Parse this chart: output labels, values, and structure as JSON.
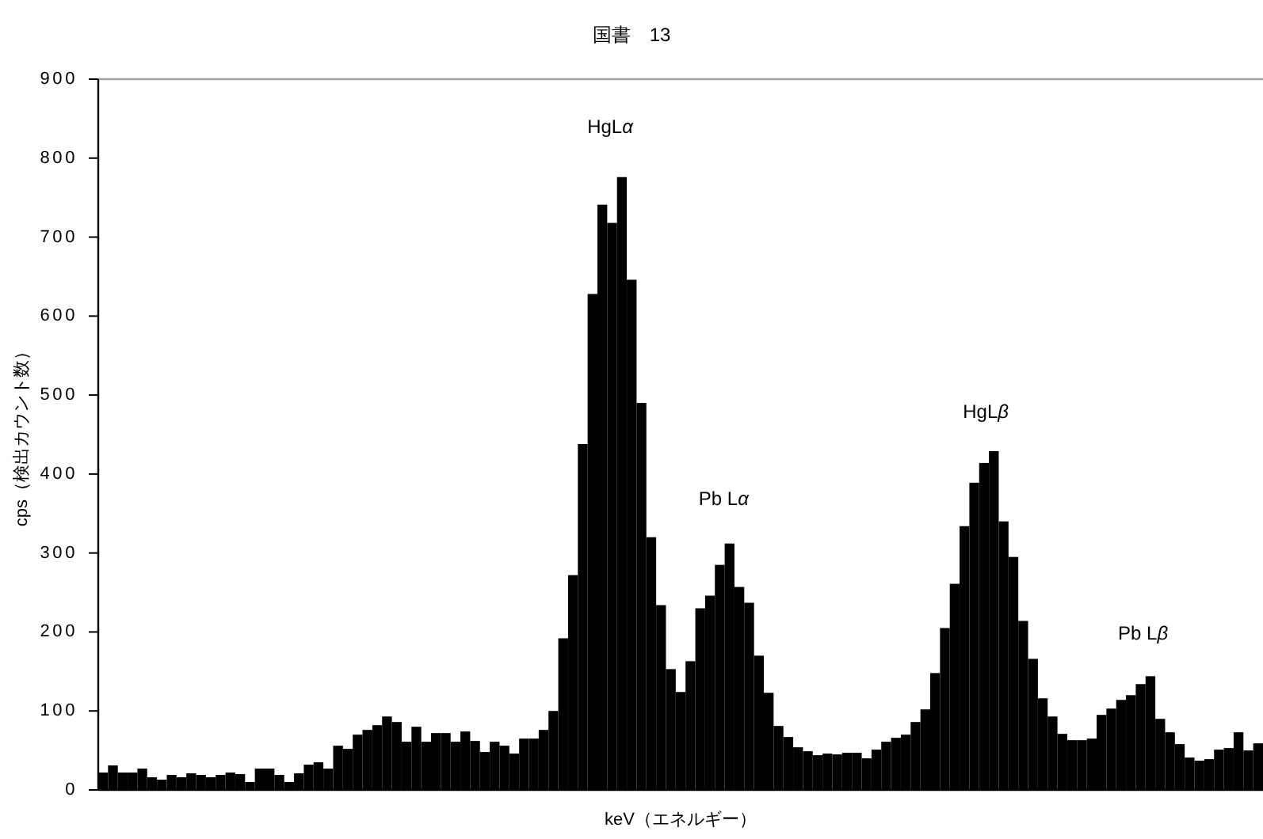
{
  "chart_data": {
    "type": "bar",
    "title": "国書　13",
    "xlabel": "keV（エネルギー）",
    "ylabel": "cps（検出カウント数）",
    "categories": [
      null,
      null,
      null,
      null,
      null,
      null,
      null,
      null,
      null,
      null,
      null,
      null,
      null,
      null,
      null,
      null,
      null,
      null,
      null,
      null,
      null,
      null,
      null,
      null,
      null,
      null,
      null,
      null,
      null,
      null,
      null,
      null,
      null,
      null,
      null,
      null,
      null,
      null,
      null,
      null,
      null,
      null,
      null,
      null,
      null,
      null,
      null,
      null,
      null,
      null,
      null,
      null,
      null,
      null,
      null,
      null,
      null,
      null,
      null,
      null,
      null,
      null,
      null,
      null,
      null,
      null,
      null,
      null,
      null,
      null,
      null,
      null,
      null,
      null,
      null,
      null,
      null,
      null,
      null,
      null,
      null,
      null,
      null,
      null,
      null,
      null,
      null,
      null,
      null,
      null,
      null,
      null,
      null,
      null,
      null,
      null,
      null,
      null,
      null,
      null,
      null,
      null,
      null,
      null,
      null,
      null,
      null,
      null,
      null,
      null,
      null,
      null,
      null,
      null,
      null,
      null,
      null,
      null,
      null
    ],
    "values": [
      22,
      31,
      22,
      22,
      27,
      16,
      13,
      19,
      16,
      21,
      19,
      16,
      19,
      22,
      20,
      10,
      27,
      27,
      19,
      10,
      21,
      32,
      35,
      27,
      56,
      52,
      70,
      76,
      82,
      93,
      86,
      61,
      80,
      61,
      72,
      72,
      61,
      74,
      62,
      48,
      61,
      56,
      46,
      65,
      65,
      76,
      100,
      192,
      272,
      438,
      628,
      741,
      718,
      776,
      646,
      490,
      320,
      234,
      153,
      124,
      163,
      230,
      246,
      285,
      312,
      257,
      237,
      170,
      123,
      81,
      67,
      54,
      49,
      44,
      46,
      45,
      47,
      47,
      40,
      51,
      61,
      66,
      70,
      86,
      102,
      148,
      205,
      261,
      334,
      389,
      414,
      429,
      340,
      295,
      214,
      166,
      116,
      93,
      71,
      63,
      63,
      65,
      95,
      103,
      114,
      120,
      134,
      144,
      90,
      73,
      58,
      41,
      37,
      39,
      51,
      53,
      73,
      50,
      59
    ],
    "color": "#000000",
    "ylim": [
      0,
      900
    ],
    "yticks": [
      0,
      100,
      200,
      300,
      400,
      500,
      600,
      700,
      800,
      900
    ],
    "tick_labels": "y",
    "annotations": [
      "HgLα",
      "Pb Lα",
      "HgLβ",
      "Pb Lβ"
    ]
  }
}
